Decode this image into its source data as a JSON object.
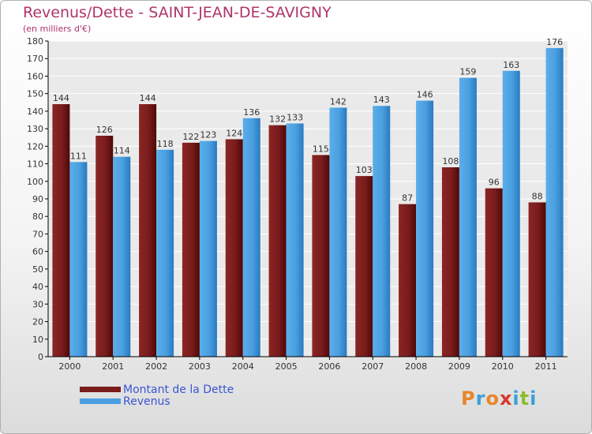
{
  "header": {
    "title": "Revenus/Dette - SAINT-JEAN-DE-SAVIGNY",
    "subtitle": "(en milliers d'€)"
  },
  "logo": {
    "text": "Proxiti",
    "letter_colors": [
      "#e8862a",
      "#3aa0d8",
      "#e8862a",
      "#d63a2a",
      "#3aa0d8",
      "#8cbd2c",
      "#3aa0d8"
    ]
  },
  "colors": {
    "dette": "#7a1c1c",
    "revenus": "#4a9fe0",
    "axis": "#000000",
    "grid": "#ffffff",
    "text": "#333333"
  },
  "chart_data": {
    "type": "bar",
    "categories": [
      "2000",
      "2001",
      "2002",
      "2003",
      "2004",
      "2005",
      "2006",
      "2007",
      "2008",
      "2009",
      "2010",
      "2011"
    ],
    "series": [
      {
        "name": "Montant de la Dette",
        "values": [
          144,
          126,
          144,
          122,
          124,
          132,
          115,
          103,
          87,
          108,
          96,
          88
        ]
      },
      {
        "name": "Revenus",
        "values": [
          111,
          114,
          118,
          123,
          136,
          133,
          142,
          143,
          146,
          159,
          163,
          176
        ]
      }
    ],
    "ylim": [
      0,
      180
    ],
    "ytick_step": 10,
    "grid": true,
    "legend_position": "bottom-left",
    "data_labels": true
  }
}
